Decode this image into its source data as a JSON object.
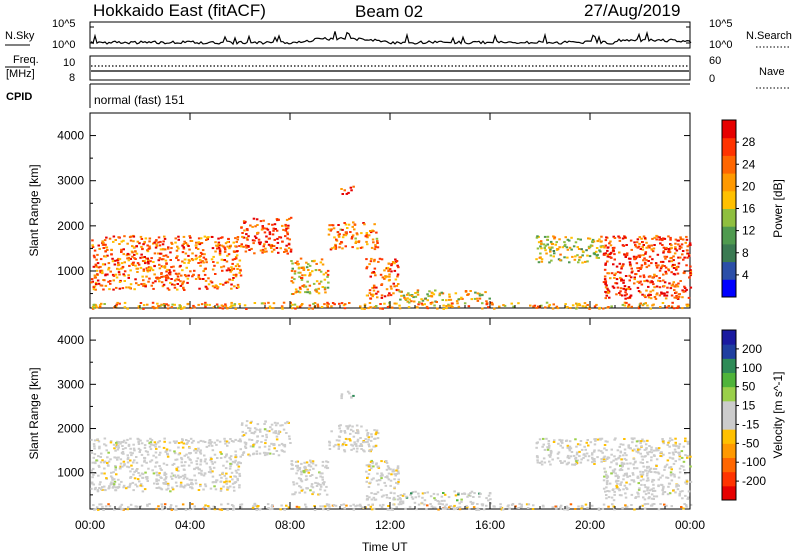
{
  "header": {
    "station": "Hokkaido East (fitACF)",
    "beam": "Beam 02",
    "date": "27/Aug/2019"
  },
  "status": {
    "nsky_label": "N.Sky",
    "nsearch_label": "N.Search",
    "freq_label": "Freq.",
    "freq_unit": "[MHz]",
    "nave_label": "Nave",
    "cpid_label": "CPID",
    "noise_ticks_left": [
      "10^5",
      "10^0"
    ],
    "noise_ticks_right": [
      "10^5",
      "10^0"
    ],
    "freq_ticks": [
      "10",
      "8"
    ],
    "nave_ticks": [
      "60",
      "0"
    ],
    "cpid_text": "normal (fast) 151"
  },
  "chart_data": [
    {
      "type": "heatmap",
      "title": "",
      "xlabel": "Time UT",
      "ylabel": "Slant Range [km]",
      "x_ticks": [
        "00:00",
        "04:00",
        "08:00",
        "12:00",
        "16:00",
        "20:00",
        "00:00"
      ],
      "x_range_hours": [
        0,
        24
      ],
      "y_range": [
        180,
        4500
      ],
      "y_ticks": [
        1000,
        2000,
        3000,
        4000
      ],
      "colorbar": {
        "label": "Power [dB]",
        "ticks": [
          "28",
          "24",
          "20",
          "16",
          "12",
          "8",
          "4"
        ],
        "colors": [
          "#0000ff",
          "#2c4fa8",
          "#3a7a52",
          "#4f9a4f",
          "#8fbf3f",
          "#ffc000",
          "#ff9900",
          "#ff6600",
          "#ff3300",
          "#e60000"
        ]
      },
      "echo_regions": [
        {
          "t": [
            0.0,
            6.0
          ],
          "r": [
            600,
            1800
          ],
          "level": 0.75
        },
        {
          "t": [
            6.0,
            8.0
          ],
          "r": [
            1400,
            2200
          ],
          "level": 0.85
        },
        {
          "t": [
            8.0,
            9.5
          ],
          "r": [
            500,
            1300
          ],
          "level": 0.6
        },
        {
          "t": [
            9.5,
            11.5
          ],
          "r": [
            1500,
            2100
          ],
          "level": 0.7
        },
        {
          "t": [
            10.0,
            10.5
          ],
          "r": [
            2700,
            2900
          ],
          "level": 0.9
        },
        {
          "t": [
            11.0,
            12.3
          ],
          "r": [
            400,
            1300
          ],
          "level": 0.8
        },
        {
          "t": [
            12.3,
            16.0
          ],
          "r": [
            300,
            600
          ],
          "level": 0.55
        },
        {
          "t": [
            17.8,
            20.5
          ],
          "r": [
            1200,
            1800
          ],
          "level": 0.5
        },
        {
          "t": [
            20.5,
            24.0
          ],
          "r": [
            400,
            1800
          ],
          "level": 0.85
        },
        {
          "t": [
            0.0,
            24.0
          ],
          "r": [
            180,
            320
          ],
          "level": 0.65
        }
      ]
    },
    {
      "type": "heatmap",
      "title": "",
      "xlabel": "Time UT",
      "ylabel": "Slant Range [km]",
      "x_ticks": [
        "00:00",
        "04:00",
        "08:00",
        "12:00",
        "16:00",
        "20:00",
        "00:00"
      ],
      "x_range_hours": [
        0,
        24
      ],
      "y_range": [
        180,
        4500
      ],
      "y_ticks": [
        1000,
        2000,
        3000,
        4000
      ],
      "colorbar": {
        "label": "Velocity [m s^-1]",
        "ticks": [
          "200",
          "100",
          "50",
          "15",
          "-15",
          "-50",
          "-100",
          "-200"
        ],
        "colors": [
          "#e60000",
          "#ff3300",
          "#ff6600",
          "#ff9900",
          "#ffc000",
          "#cccccc",
          "#cccccc",
          "#9ad04a",
          "#4fb43a",
          "#2e8b57",
          "#1f3fa0",
          "#1a1aa0"
        ]
      },
      "echo_regions": [
        {
          "t": [
            0.0,
            6.0
          ],
          "r": [
            600,
            1800
          ],
          "level": 0.5
        },
        {
          "t": [
            6.0,
            8.0
          ],
          "r": [
            1400,
            2200
          ],
          "level": 0.5
        },
        {
          "t": [
            8.0,
            9.5
          ],
          "r": [
            500,
            1300
          ],
          "level": 0.5
        },
        {
          "t": [
            9.5,
            11.5
          ],
          "r": [
            1500,
            2100
          ],
          "level": 0.45
        },
        {
          "t": [
            10.0,
            10.5
          ],
          "r": [
            2700,
            2900
          ],
          "level": 0.72
        },
        {
          "t": [
            11.0,
            12.3
          ],
          "r": [
            400,
            1300
          ],
          "level": 0.5
        },
        {
          "t": [
            12.3,
            16.0
          ],
          "r": [
            300,
            600
          ],
          "level": 0.7
        },
        {
          "t": [
            17.8,
            20.5
          ],
          "r": [
            1200,
            1800
          ],
          "level": 0.5
        },
        {
          "t": [
            20.5,
            24.0
          ],
          "r": [
            400,
            1800
          ],
          "level": 0.5
        },
        {
          "t": [
            0.0,
            24.0
          ],
          "r": [
            180,
            320
          ],
          "level": 0.3
        }
      ]
    }
  ]
}
